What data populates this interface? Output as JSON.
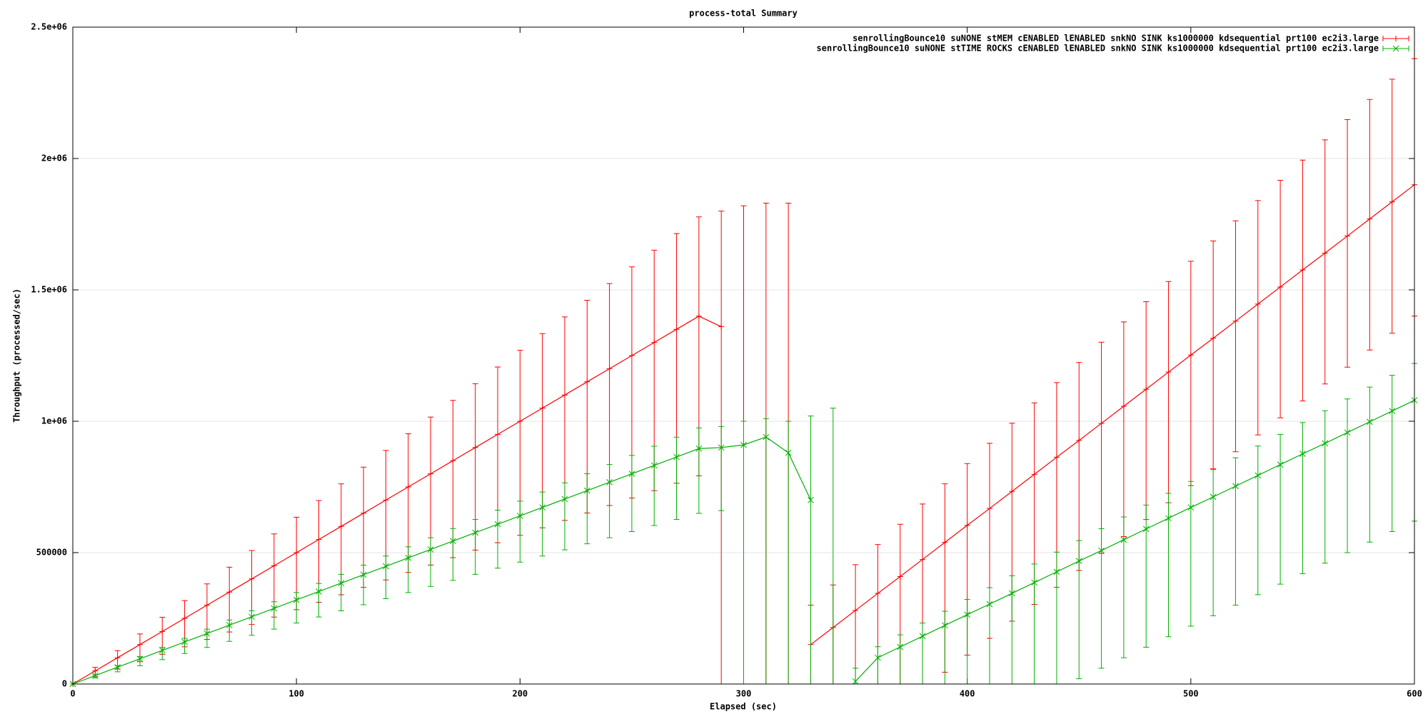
{
  "chart_data": {
    "type": "line",
    "title": "process-total Summary",
    "x_label": "Elapsed (sec)",
    "y_label": "Throughput (processed/sec)",
    "x": [
      0,
      10,
      20,
      30,
      40,
      50,
      60,
      70,
      80,
      90,
      100,
      110,
      120,
      130,
      140,
      150,
      160,
      170,
      180,
      190,
      200,
      210,
      220,
      230,
      240,
      250,
      260,
      270,
      280,
      290,
      300,
      310,
      320,
      330,
      340,
      350,
      360,
      370,
      380,
      390,
      400,
      410,
      420,
      430,
      440,
      450,
      460,
      470,
      480,
      490,
      500,
      510,
      520,
      530,
      540,
      550,
      560,
      570,
      580,
      590,
      600
    ],
    "xlim": [
      0,
      600
    ],
    "xticks": [
      0,
      100,
      200,
      300,
      400,
      500,
      600
    ],
    "ylim": [
      0,
      2500000
    ],
    "yticks": [
      0,
      500000,
      {
        "value": 1000000,
        "label": "1e+06"
      },
      {
        "value": 1500000,
        "label": "1.5e+06"
      },
      {
        "value": 2000000,
        "label": "2e+06"
      },
      {
        "value": 2500000,
        "label": "2.5e+06"
      }
    ],
    "grid": true,
    "legend": "top-right",
    "series": [
      {
        "name": "senrollingBounce10 suNONE stMEM cENABLED lENABLED snkNO SINK ks1000000 kdsequential prt100 ec2i3.large",
        "color": "#ff0000",
        "marker": "plus",
        "values": [
          0,
          50000,
          100000,
          150000,
          200000,
          250000,
          300000,
          350000,
          400000,
          450000,
          500000,
          550000,
          600000,
          650000,
          700000,
          750000,
          800000,
          850000,
          900000,
          950000,
          1000000,
          1050000,
          1100000,
          1150000,
          1200000,
          1250000,
          1300000,
          1350000,
          1400000,
          1360000,
          null,
          null,
          null,
          150000,
          215000,
          280000,
          345000,
          409000,
          474000,
          539000,
          604000,
          668000,
          733000,
          798000,
          863000,
          927000,
          992000,
          1057000,
          1122000,
          1187000,
          1252000,
          1316000,
          1381000,
          1446000,
          1511000,
          1576000,
          1640000,
          1705000,
          1770000,
          1835000,
          1900000
        ],
        "low": [
          0,
          28300,
          56600,
          84900,
          113200,
          141500,
          169800,
          198100,
          226400,
          254700,
          283000,
          311300,
          339600,
          367900,
          396200,
          424500,
          452800,
          481100,
          509400,
          537700,
          566000,
          594300,
          622600,
          650900,
          679200,
          707500,
          735800,
          764100,
          792400,
          0,
          0,
          0,
          0,
          0,
          0,
          0,
          0,
          0,
          0,
          45000,
          110000,
          174000,
          239000,
          303000,
          368000,
          432000,
          497000,
          561000,
          626000,
          690000,
          755000,
          819000,
          884000,
          948000,
          1013000,
          1077000,
          1142000,
          1206000,
          1271000,
          1335000,
          1400000
        ],
        "high": [
          0,
          63500,
          127000,
          190500,
          254000,
          317500,
          381000,
          444500,
          508000,
          571500,
          635000,
          698500,
          762000,
          825500,
          889000,
          952500,
          1016000,
          1079500,
          1143000,
          1206500,
          1270000,
          1333500,
          1397000,
          1460500,
          1524000,
          1587500,
          1651000,
          1714500,
          1778000,
          1800000,
          1820000,
          1830000,
          1830000,
          300000,
          377000,
          454000,
          531000,
          608000,
          685000,
          762000,
          839000,
          916000,
          993000,
          1070000,
          1147000,
          1224000,
          1301000,
          1378000,
          1455000,
          1532000,
          1609000,
          1686000,
          1763000,
          1840000,
          1917000,
          1994000,
          2071000,
          2148000,
          2225000,
          2302000,
          2380000
        ]
      },
      {
        "name": "senrollingBounce10 suNONE stTIME ROCKS cENABLED lENABLED snkNO SINK ks1000000 kdsequential prt100 ec2i3.large",
        "color": "#00b000",
        "marker": "cross",
        "values": [
          0,
          32000,
          64000,
          96000,
          128000,
          160000,
          192000,
          224000,
          256000,
          288000,
          320000,
          352000,
          384000,
          416000,
          448000,
          480000,
          512000,
          544000,
          576000,
          608000,
          640000,
          672000,
          704000,
          736000,
          768000,
          800000,
          832000,
          864000,
          896000,
          900000,
          910000,
          940000,
          880000,
          700000,
          null,
          10000,
          100000,
          141000,
          182000,
          223000,
          264000,
          304000,
          345000,
          386000,
          427000,
          468000,
          508000,
          549000,
          590000,
          631000,
          672000,
          712000,
          753000,
          794000,
          835000,
          876000,
          916000,
          957000,
          998000,
          1039000,
          1080000
        ],
        "low": [
          0,
          23200,
          46400,
          69600,
          92800,
          116000,
          139200,
          162400,
          185600,
          208800,
          232000,
          255200,
          278400,
          301600,
          324800,
          348000,
          371200,
          394400,
          417600,
          440800,
          464000,
          487200,
          510400,
          533600,
          556800,
          580000,
          603200,
          626400,
          649600,
          660000,
          0,
          0,
          0,
          0,
          0,
          0,
          0,
          0,
          0,
          0,
          0,
          0,
          0,
          0,
          0,
          20000,
          60000,
          100000,
          140000,
          180000,
          220000,
          260000,
          300000,
          340000,
          380000,
          420000,
          460000,
          500000,
          540000,
          580000,
          620000
        ],
        "high": [
          0,
          34800,
          69600,
          104400,
          139200,
          174000,
          208800,
          243600,
          278400,
          313200,
          348000,
          382800,
          417600,
          452400,
          487200,
          522000,
          556800,
          591600,
          626400,
          661200,
          696000,
          730800,
          765600,
          800400,
          835200,
          870000,
          904800,
          939600,
          974400,
          980000,
          1000000,
          1010000,
          1000000,
          1020000,
          1050000,
          60000,
          142000,
          187000,
          232000,
          277000,
          322000,
          367000,
          412000,
          457000,
          502000,
          546000,
          591000,
          636000,
          681000,
          726000,
          771000,
          816000,
          861000,
          906000,
          950000,
          995000,
          1040000,
          1085000,
          1130000,
          1175000,
          1220000
        ]
      }
    ]
  }
}
